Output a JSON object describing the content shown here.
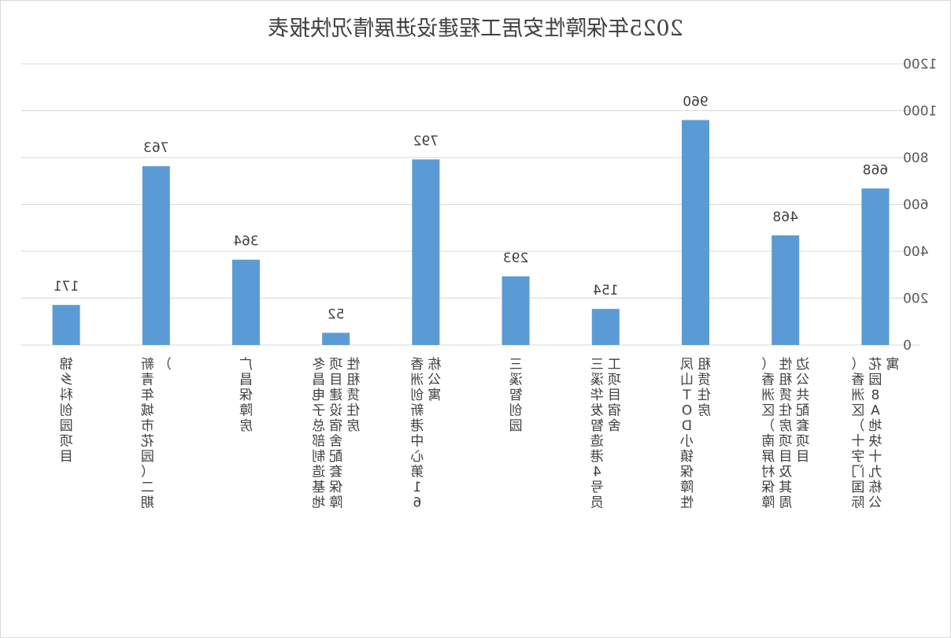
{
  "chart_data": {
    "type": "bar",
    "title": "2025年保障性安居工程建设进展情况快报表",
    "categories": [
      "锦乡科创园项目",
      "新青年城市花园（二期）",
      "广昌保障房",
      "冬昌电子总部制造基地项目建设宿舍配套保障性租赁住房",
      "香洲创新港中心第16栋公寓",
      "三溪智创园",
      "三溪华发智造港4号员工项目宿舍",
      "凤山TOD小镇保障性租赁住房",
      "（香洲区）南屏村保障性租赁住房项目及其周边公共配套项目",
      "（香洲区）十字门国际花园8A地块十九栋公寓"
    ],
    "values": [
      171,
      763,
      364,
      52,
      792,
      293,
      154,
      960,
      468,
      668
    ],
    "ylim": [
      0,
      1200
    ],
    "yticks": [
      0,
      200,
      400,
      600,
      800,
      1000,
      1200
    ],
    "xlabel": "",
    "ylabel": "",
    "grid": true,
    "legend": "none",
    "bar_color": "#5b9bd5",
    "grid_color": "#d9d9d9"
  }
}
